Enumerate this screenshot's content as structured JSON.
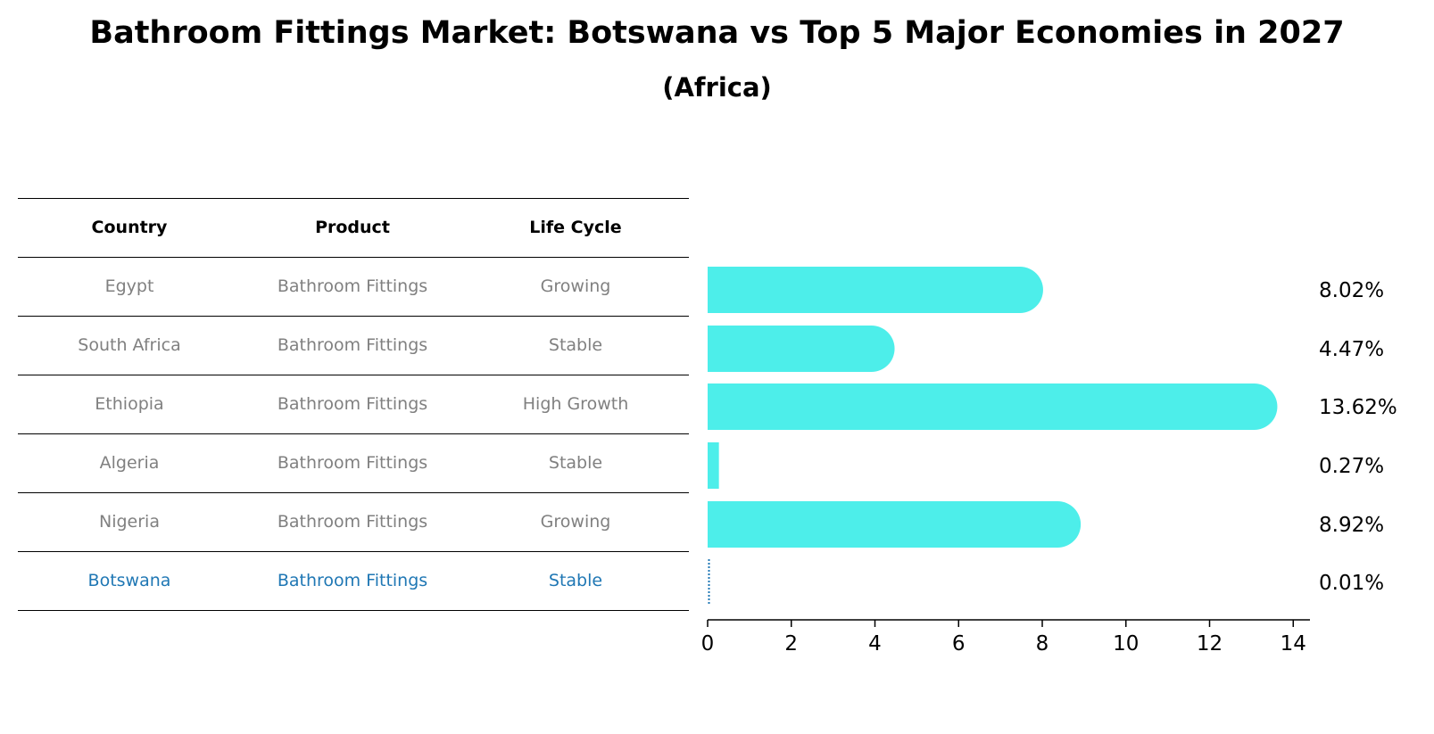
{
  "title": "Bathroom Fittings Market: Botswana vs Top 5 Major Economies in 2027",
  "subtitle": "(Africa)",
  "table": {
    "headers": [
      "Country",
      "Product",
      "Life Cycle"
    ],
    "rows": [
      {
        "country": "Egypt",
        "product": "Bathroom Fittings",
        "life_cycle": "Growing"
      },
      {
        "country": "South Africa",
        "product": "Bathroom Fittings",
        "life_cycle": "Stable"
      },
      {
        "country": "Ethiopia",
        "product": "Bathroom Fittings",
        "life_cycle": "High Growth"
      },
      {
        "country": "Algeria",
        "product": "Bathroom Fittings",
        "life_cycle": "Stable"
      },
      {
        "country": "Nigeria",
        "product": "Bathroom Fittings",
        "life_cycle": "Growing"
      },
      {
        "country": "Botswana",
        "product": "Bathroom Fittings",
        "life_cycle": "Stable",
        "highlight": true
      }
    ]
  },
  "colors": {
    "bar": "#4DEEEA",
    "highlight": "#1f77b4",
    "muted_text": "#808080"
  },
  "chart_data": {
    "type": "bar",
    "orientation": "horizontal",
    "categories": [
      "Egypt",
      "South Africa",
      "Ethiopia",
      "Algeria",
      "Nigeria",
      "Botswana"
    ],
    "values": [
      8.02,
      4.47,
      13.62,
      0.27,
      8.92,
      0.01
    ],
    "value_labels": [
      "8.02%",
      "4.47%",
      "13.62%",
      "0.27%",
      "8.92%",
      "0.01%"
    ],
    "xlim": [
      0,
      14.4
    ],
    "xticks": [
      0,
      2,
      4,
      6,
      8,
      10,
      12,
      14
    ],
    "xlabel": "",
    "ylabel": "",
    "grid": false
  }
}
